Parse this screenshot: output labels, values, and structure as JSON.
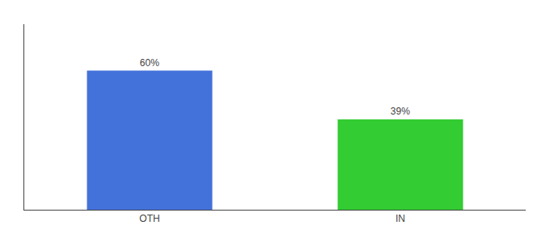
{
  "chart_data": {
    "type": "bar",
    "categories": [
      "OTH",
      "IN"
    ],
    "values": [
      60,
      39
    ],
    "value_labels": [
      "60%",
      "39%"
    ],
    "data_labels": true,
    "colors": [
      "#4472db",
      "#33cc33"
    ],
    "ylim": [
      0,
      80
    ],
    "grid": false,
    "tick_labels": "x"
  }
}
